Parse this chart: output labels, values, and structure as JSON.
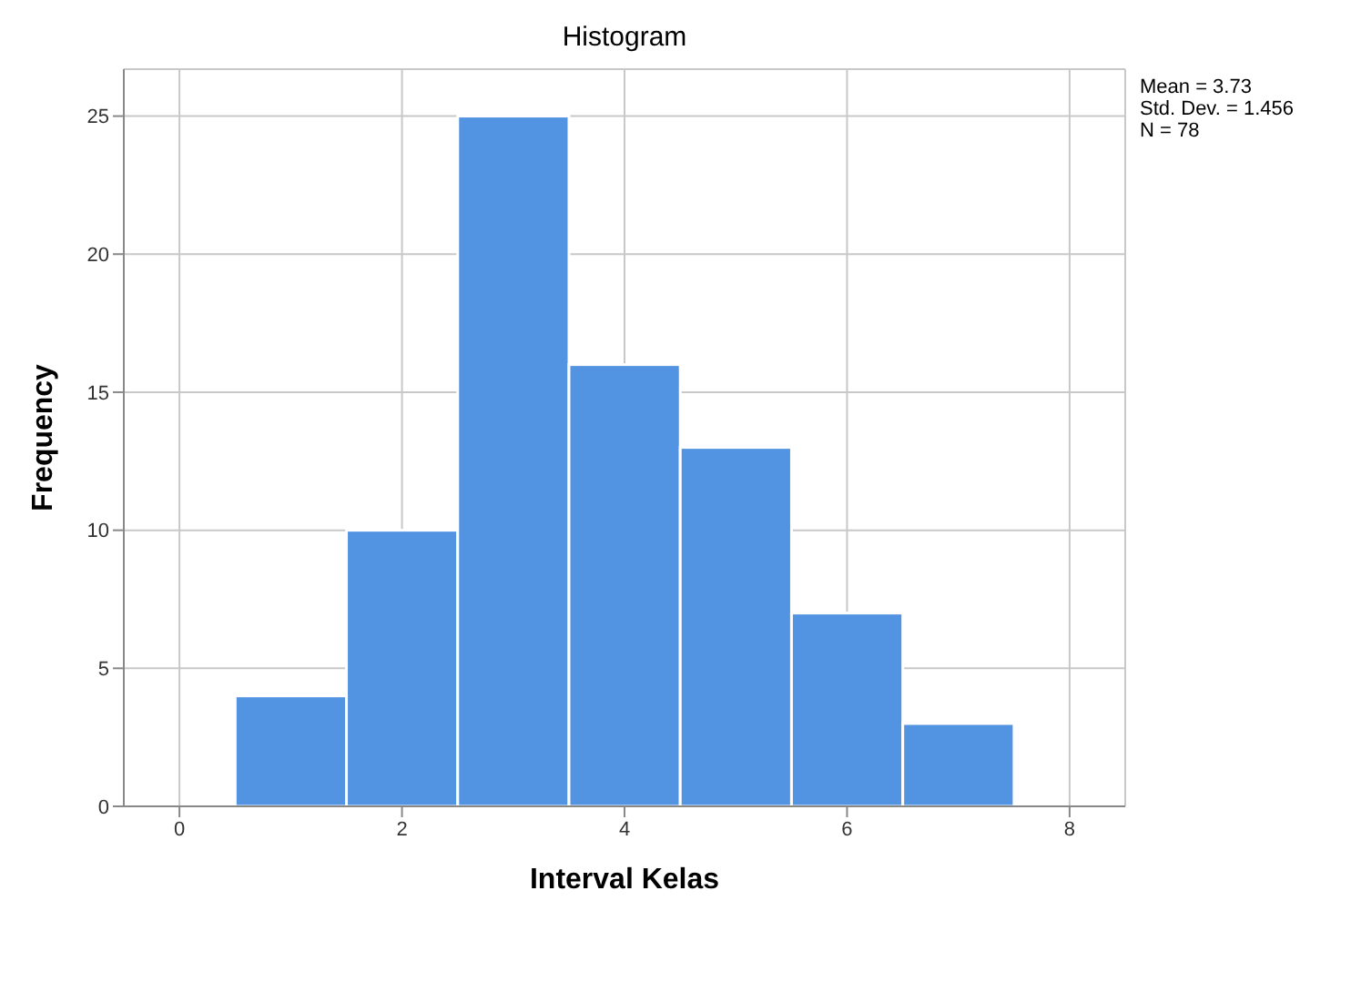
{
  "chart_data": {
    "type": "histogram",
    "title": "Histogram",
    "xlabel": "Interval Kelas",
    "ylabel": "Frequency",
    "bins": [
      0.5,
      1.5,
      2.5,
      3.5,
      4.5,
      5.5,
      6.5,
      7.5
    ],
    "values": [
      4,
      10,
      25,
      16,
      13,
      7,
      3
    ],
    "color": "#5294e2",
    "xlim": [
      -0.5,
      8.5
    ],
    "xticks": [
      0,
      2,
      4,
      6,
      8
    ],
    "ylim": [
      0,
      26.7
    ],
    "yticks": [
      0,
      5,
      10,
      15,
      20,
      25
    ],
    "grid": true,
    "annotations": [
      "Mean = 3.73",
      "Std. Dev. = 1.456",
      "N = 78"
    ]
  }
}
